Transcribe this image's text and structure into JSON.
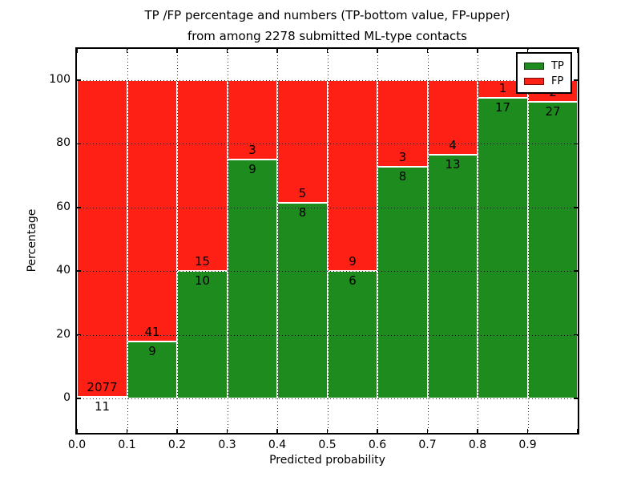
{
  "chart_data": {
    "type": "bar",
    "stacked": true,
    "title_lines": [
      "TP /FP percentage and numbers (TP-bottom value, FP-upper)",
      "from among 2278 submitted ML-type contacts"
    ],
    "xlabel": "Predicted probability",
    "ylabel": "Percentage",
    "total_contacts": 2278,
    "bin_width": 0.1,
    "x_tick_labels": [
      "0.0",
      "0.1",
      "0.2",
      "0.3",
      "0.4",
      "0.5",
      "0.6",
      "0.7",
      "0.8",
      "0.9"
    ],
    "y_ticks": [
      0,
      20,
      40,
      60,
      80,
      100
    ],
    "y_tick_labels": [
      "0",
      "20",
      "40",
      "60",
      "80",
      "100"
    ],
    "xlim": [
      0.0,
      1.0
    ],
    "ylim": [
      -10.8,
      109.8
    ],
    "grid": "dotted",
    "legend_position": "upper right",
    "colors": {
      "tp": "#1e8b1e",
      "fp": "#ff2015"
    },
    "series": [
      {
        "name": "TP",
        "color": "#1e8b1e",
        "counts": [
          11,
          9,
          10,
          9,
          8,
          6,
          8,
          13,
          17,
          27
        ],
        "pct": [
          0.53,
          18.0,
          40.0,
          75.0,
          61.54,
          40.0,
          72.73,
          76.47,
          94.44,
          93.1
        ]
      },
      {
        "name": "FP",
        "color": "#ff2015",
        "counts": [
          2077,
          41,
          15,
          3,
          5,
          9,
          3,
          4,
          1,
          2
        ],
        "pct": [
          99.47,
          82.0,
          60.0,
          25.0,
          38.46,
          60.0,
          27.27,
          23.53,
          5.56,
          6.9
        ]
      }
    ]
  }
}
